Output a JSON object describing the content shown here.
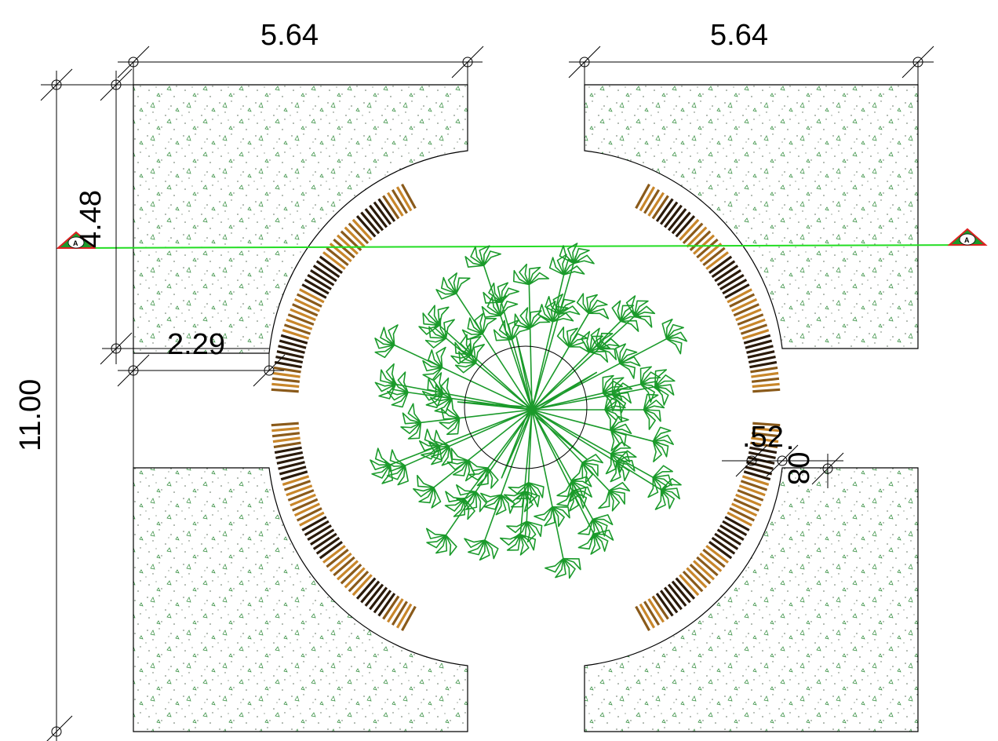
{
  "dimensions": {
    "top_left_width": "5.64",
    "top_right_width": "5.64",
    "total_height": "11.00",
    "upper_height": "4.48",
    "offset_width": "2.29",
    "bench_width": ".52",
    "bench_gap": ".08"
  },
  "section_marker": {
    "left_label": "A",
    "right_label": "A"
  },
  "colors": {
    "line": "#000000",
    "section_line": "#22dd22",
    "marker_fill": "#1a9a2a",
    "marker_border": "#dd2222",
    "plant": "#1a9a2a",
    "bench_light": "#c8862a",
    "bench_dark": "#2a1a0a"
  },
  "icons": {
    "tree": "tree-top-view-icon",
    "section_marker": "section-cut-marker-icon"
  }
}
